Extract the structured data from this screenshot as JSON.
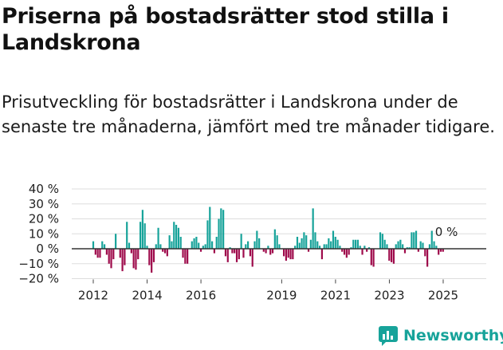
{
  "header": {
    "title": "Priserna på bostadsrätter stod stilla i Landskrona",
    "subtitle": "Prisutveckling för bostadsrätter i Landskrona under de senaste tre månaderna, jämfört med tre månader tidigare."
  },
  "brand": {
    "name": "Newsworthy"
  },
  "colors": {
    "positive": "#17a39a",
    "negative": "#9e0b4b",
    "grid": "#dddddd",
    "zero": "#333333"
  },
  "chart_data": {
    "type": "bar",
    "title": "Prisutveckling för bostadsrätter i Landskrona",
    "ylabel": "",
    "xlabel": "",
    "ylim": [
      -20,
      40
    ],
    "yticks": [
      -20,
      -10,
      0,
      10,
      20,
      30,
      40
    ],
    "ytick_labels": [
      "−20 %",
      "−10 %",
      "0 %",
      "10 %",
      "20 %",
      "30 %",
      "40 %"
    ],
    "x_start": 2012.0,
    "x_step": 0.0833,
    "x_range": [
      2011.2,
      2026.6
    ],
    "xticks": [
      2012,
      2014,
      2016,
      2019,
      2021,
      2023,
      2025
    ],
    "values": [
      5,
      -4,
      -6,
      -6,
      5,
      3,
      -4,
      -10,
      -13,
      -7,
      10,
      0,
      -6,
      -15,
      -11,
      18,
      4,
      -3,
      -13,
      -14,
      -7,
      18,
      26,
      17,
      2,
      -11,
      -16,
      -9,
      3,
      14,
      3,
      -2,
      -3,
      -5,
      9,
      5,
      18,
      16,
      14,
      8,
      -6,
      -10,
      -10,
      0,
      5,
      7,
      8,
      4,
      -2,
      2,
      3,
      19,
      28,
      5,
      -3,
      8,
      20,
      27,
      26,
      -5,
      -9,
      1,
      -3,
      -3,
      -9,
      -7,
      10,
      -6,
      3,
      5,
      -5,
      -12,
      5,
      12,
      7,
      0,
      -2,
      -3,
      2,
      -4,
      -3,
      13,
      9,
      3,
      0,
      -5,
      -8,
      -6,
      -7,
      -7,
      2,
      8,
      4,
      7,
      11,
      9,
      -2,
      6,
      27,
      11,
      5,
      2,
      -7,
      3,
      3,
      7,
      5,
      12,
      8,
      6,
      2,
      -2,
      -4,
      -6,
      -4,
      1,
      6,
      6,
      6,
      2,
      -4,
      2,
      -2,
      1,
      -11,
      -12,
      0,
      0,
      11,
      10,
      6,
      3,
      -8,
      -9,
      -10,
      3,
      5,
      6,
      3,
      -3,
      1,
      1,
      11,
      11,
      12,
      -2,
      5,
      4,
      -5,
      -12,
      3,
      12,
      5,
      2,
      -4,
      -2,
      -2
    ],
    "annotation": {
      "text": "0 %",
      "value": 0
    }
  }
}
